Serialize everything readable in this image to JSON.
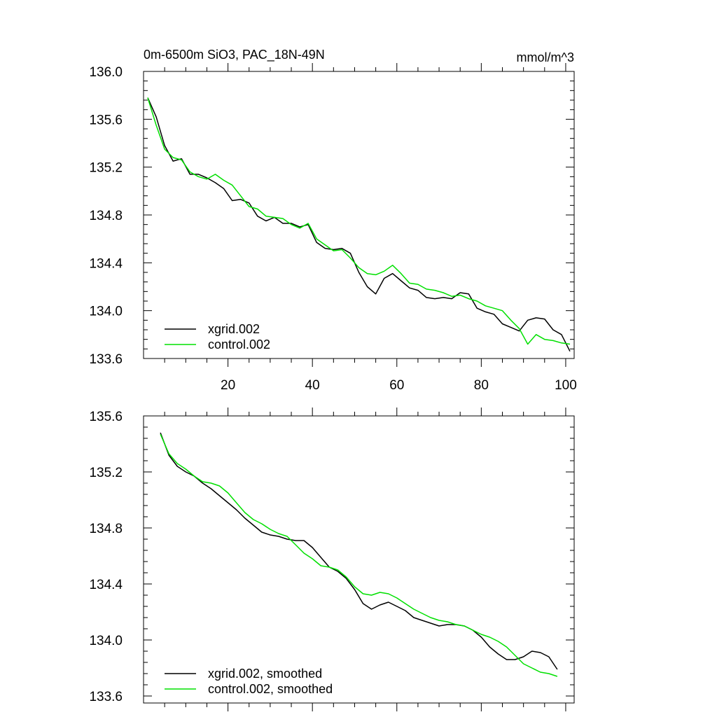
{
  "colors": {
    "xgrid": "#000000",
    "control": "#00e000",
    "axis": "#000000"
  },
  "chart_data": [
    {
      "type": "line",
      "title": "0m-6500m SiO3, PAC_18N-49N",
      "units": "mmol/m^3",
      "xlim": [
        0,
        102
      ],
      "ylim": [
        133.6,
        136.0
      ],
      "xticks": [
        20,
        40,
        60,
        80,
        100
      ],
      "xtick_labels": [
        "20",
        "40",
        "60",
        "80",
        "100"
      ],
      "yticks": [
        133.6,
        134.0,
        134.4,
        134.8,
        135.2,
        135.6,
        136.0
      ],
      "ytick_labels": [
        "133.6",
        "134.0",
        "134.4",
        "134.8",
        "135.2",
        "135.6",
        "136.0"
      ],
      "legend": [
        "xgrid.002",
        "control.002"
      ],
      "legend_position": "bottom-left",
      "series": [
        {
          "name": "xgrid.002",
          "color_key": "xgrid",
          "x": [
            1,
            3,
            5,
            7,
            9,
            11,
            13,
            15,
            17,
            19,
            21,
            23,
            25,
            27,
            29,
            31,
            33,
            35,
            37,
            39,
            41,
            43,
            45,
            47,
            49,
            51,
            53,
            55,
            57,
            59,
            61,
            63,
            65,
            67,
            69,
            71,
            73,
            75,
            77,
            79,
            81,
            83,
            85,
            87,
            89,
            91,
            93,
            95,
            97,
            99,
            101
          ],
          "y": [
            135.78,
            135.62,
            135.38,
            135.25,
            135.27,
            135.14,
            135.14,
            135.11,
            135.07,
            135.02,
            134.92,
            134.93,
            134.9,
            134.79,
            134.75,
            134.78,
            134.73,
            134.73,
            134.7,
            134.72,
            134.57,
            134.52,
            134.51,
            134.52,
            134.48,
            134.32,
            134.2,
            134.14,
            134.27,
            134.31,
            134.25,
            134.19,
            134.17,
            134.11,
            134.1,
            134.11,
            134.1,
            134.15,
            134.14,
            134.02,
            133.99,
            133.97,
            133.89,
            133.86,
            133.83,
            133.92,
            133.94,
            133.93,
            133.84,
            133.8,
            133.66
          ]
        },
        {
          "name": "control.002",
          "color_key": "control",
          "x": [
            1,
            3,
            5,
            7,
            9,
            11,
            13,
            15,
            17,
            19,
            21,
            23,
            25,
            27,
            29,
            31,
            33,
            35,
            37,
            39,
            41,
            43,
            45,
            47,
            49,
            51,
            53,
            55,
            57,
            59,
            61,
            63,
            65,
            67,
            69,
            71,
            73,
            75,
            77,
            79,
            81,
            83,
            85,
            87,
            89,
            91,
            93,
            95,
            97,
            99,
            101
          ],
          "y": [
            135.78,
            135.55,
            135.35,
            135.28,
            135.26,
            135.16,
            135.12,
            135.1,
            135.14,
            135.09,
            135.05,
            134.96,
            134.87,
            134.85,
            134.79,
            134.78,
            134.77,
            134.72,
            134.69,
            134.73,
            134.6,
            134.55,
            134.5,
            134.51,
            134.44,
            134.36,
            134.31,
            134.3,
            134.33,
            134.38,
            134.31,
            134.23,
            134.22,
            134.18,
            134.17,
            134.15,
            134.12,
            134.13,
            134.1,
            134.08,
            134.04,
            134.02,
            134.0,
            133.92,
            133.85,
            133.72,
            133.8,
            133.76,
            133.75,
            133.73,
            133.72
          ]
        }
      ]
    },
    {
      "type": "line",
      "title": "",
      "xlim": [
        0,
        102
      ],
      "ylim": [
        133.55,
        135.6
      ],
      "xticks": [
        20,
        40,
        60,
        80,
        100
      ],
      "xtick_labels": [],
      "yticks": [
        133.6,
        134.0,
        134.4,
        134.8,
        135.2,
        135.6
      ],
      "ytick_labels": [
        "133.6",
        "134.0",
        "134.4",
        "134.8",
        "135.2",
        "135.6"
      ],
      "legend": [
        "xgrid.002, smoothed",
        "control.002, smoothed"
      ],
      "legend_position": "bottom-left",
      "series": [
        {
          "name": "xgrid.002, smoothed",
          "color_key": "xgrid",
          "x": [
            4,
            6,
            8,
            10,
            12,
            14,
            16,
            18,
            20,
            22,
            24,
            26,
            28,
            30,
            32,
            34,
            36,
            38,
            40,
            42,
            44,
            46,
            48,
            50,
            52,
            54,
            56,
            58,
            60,
            62,
            64,
            66,
            68,
            70,
            72,
            74,
            76,
            78,
            80,
            82,
            84,
            86,
            88,
            90,
            92,
            94,
            96,
            98
          ],
          "y": [
            135.48,
            135.32,
            135.24,
            135.2,
            135.17,
            135.12,
            135.08,
            135.03,
            134.98,
            134.93,
            134.87,
            134.82,
            134.77,
            134.75,
            134.74,
            134.72,
            134.71,
            134.71,
            134.66,
            134.59,
            134.52,
            134.49,
            134.44,
            134.36,
            134.26,
            134.22,
            134.25,
            134.27,
            134.24,
            134.21,
            134.16,
            134.14,
            134.12,
            134.1,
            134.11,
            134.11,
            134.1,
            134.07,
            134.02,
            133.95,
            133.9,
            133.86,
            133.86,
            133.88,
            133.92,
            133.91,
            133.88,
            133.79
          ]
        },
        {
          "name": "control.002, smoothed",
          "color_key": "control",
          "x": [
            4,
            6,
            8,
            10,
            12,
            14,
            16,
            18,
            20,
            22,
            24,
            26,
            28,
            30,
            32,
            34,
            36,
            38,
            40,
            42,
            44,
            46,
            48,
            50,
            52,
            54,
            56,
            58,
            60,
            62,
            64,
            66,
            68,
            70,
            72,
            74,
            76,
            78,
            80,
            82,
            84,
            86,
            88,
            90,
            92,
            94,
            96,
            98
          ],
          "y": [
            135.47,
            135.33,
            135.26,
            135.22,
            135.17,
            135.13,
            135.12,
            135.1,
            135.05,
            134.98,
            134.91,
            134.86,
            134.83,
            134.79,
            134.76,
            134.74,
            134.68,
            134.62,
            134.58,
            134.53,
            134.52,
            134.5,
            134.45,
            134.38,
            134.33,
            134.32,
            134.34,
            134.33,
            134.3,
            134.26,
            134.22,
            134.19,
            134.16,
            134.14,
            134.13,
            134.11,
            134.1,
            134.07,
            134.04,
            134.02,
            133.99,
            133.95,
            133.89,
            133.83,
            133.8,
            133.77,
            133.76,
            133.74
          ]
        }
      ]
    }
  ]
}
